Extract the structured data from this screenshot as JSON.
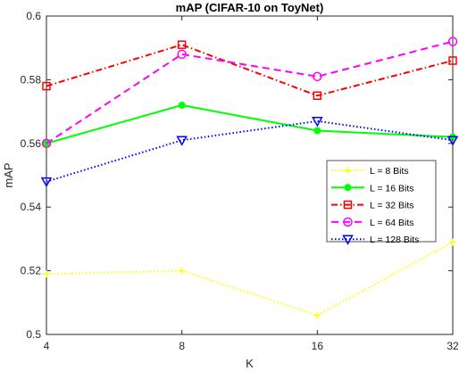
{
  "chart_data": {
    "type": "line",
    "title": "mAP (CIFAR-10 on ToyNet)",
    "xlabel": "K",
    "ylabel": "mAP",
    "x": [
      4,
      8,
      16,
      32
    ],
    "x_tick_labels": [
      "4",
      "8",
      "16",
      "32"
    ],
    "x_scale": "log2",
    "xlim": [
      4,
      32
    ],
    "ylim": [
      0.5,
      0.6
    ],
    "y_ticks": [
      0.5,
      0.52,
      0.54,
      0.56,
      0.58,
      0.6
    ],
    "y_tick_labels": [
      "0.5",
      "0.52",
      "0.54",
      "0.56",
      "0.58",
      "0.6"
    ],
    "grid": false,
    "legend_position": "right",
    "series": [
      {
        "name": "L = 8 Bits",
        "values": [
          0.519,
          0.52,
          0.506,
          0.529
        ],
        "color": "#ffff00",
        "line_style": "dotted",
        "marker": "plus"
      },
      {
        "name": "L = 16 Bits",
        "values": [
          0.56,
          0.572,
          0.564,
          0.562
        ],
        "color": "#00ff00",
        "line_style": "solid",
        "marker": "dot"
      },
      {
        "name": "L = 32 Bits",
        "values": [
          0.578,
          0.591,
          0.575,
          0.586
        ],
        "color": "#ff0000",
        "line_style": "dashdot",
        "marker": "square"
      },
      {
        "name": "L = 64 Bits",
        "values": [
          0.56,
          0.588,
          0.581,
          0.592
        ],
        "color": "#ff00ff",
        "line_style": "dashed",
        "marker": "circle"
      },
      {
        "name": "L = 128 Bits",
        "values": [
          0.548,
          0.561,
          0.567,
          0.561
        ],
        "color": "#0000ff",
        "line_style": "dotted",
        "marker": "triangle-down"
      }
    ]
  }
}
